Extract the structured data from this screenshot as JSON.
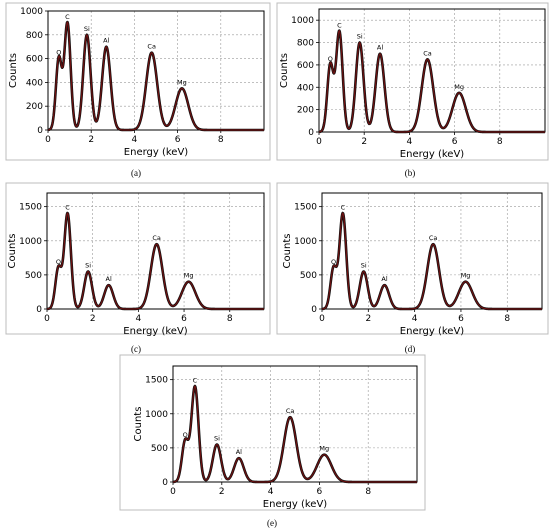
{
  "figure": {
    "panels": [
      {
        "label": "(a)"
      },
      {
        "label": "(b)"
      },
      {
        "label": "(c)"
      },
      {
        "label": "(d)"
      },
      {
        "label": "(e)"
      }
    ]
  },
  "colors": {
    "curve": "#6e1010",
    "curve_outline": "#111111",
    "grid": "#9a9a9a",
    "frame": "#bcbcbc"
  },
  "chart_data": [
    {
      "type": "line",
      "title": "",
      "xlabel": "Energy (keV)",
      "ylabel": "Counts",
      "xlim": [
        0,
        10
      ],
      "ylim": [
        0,
        1000
      ],
      "xticks": [
        0,
        2,
        4,
        6,
        8
      ],
      "yticks": [
        0,
        200,
        400,
        600,
        800,
        1000
      ],
      "grid": true,
      "peaks": [
        {
          "element": "O",
          "energy": 0.5,
          "counts": 600
        },
        {
          "element": "C",
          "energy": 0.9,
          "counts": 900
        },
        {
          "element": "Si",
          "energy": 1.8,
          "counts": 800
        },
        {
          "element": "Al",
          "energy": 2.7,
          "counts": 700
        },
        {
          "element": "Ca",
          "energy": 4.8,
          "counts": 650
        },
        {
          "element": "Mg",
          "energy": 6.2,
          "counts": 350
        }
      ]
    },
    {
      "type": "line",
      "title": "",
      "xlabel": "Energy (keV)",
      "ylabel": "Counts",
      "xlim": [
        0,
        10
      ],
      "ylim": [
        0,
        1100
      ],
      "xticks": [
        0,
        2,
        4,
        6,
        8
      ],
      "yticks": [
        0,
        200,
        400,
        600,
        800,
        1000
      ],
      "grid": true,
      "peaks": [
        {
          "element": "O",
          "energy": 0.5,
          "counts": 600
        },
        {
          "element": "C",
          "energy": 0.9,
          "counts": 900
        },
        {
          "element": "Si",
          "energy": 1.8,
          "counts": 800
        },
        {
          "element": "Al",
          "energy": 2.7,
          "counts": 700
        },
        {
          "element": "Ca",
          "energy": 4.8,
          "counts": 650
        },
        {
          "element": "Mg",
          "energy": 6.2,
          "counts": 350
        }
      ]
    },
    {
      "type": "line",
      "title": "",
      "xlabel": "Energy (keV)",
      "ylabel": "Counts",
      "xlim": [
        0,
        9.5
      ],
      "ylim": [
        0,
        1700
      ],
      "xticks": [
        0,
        2,
        4,
        6,
        8
      ],
      "yticks": [
        0,
        500,
        1000,
        1500
      ],
      "grid": true,
      "peaks": [
        {
          "element": "O",
          "energy": 0.5,
          "counts": 600
        },
        {
          "element": "C",
          "energy": 0.9,
          "counts": 1400
        },
        {
          "element": "Si",
          "energy": 1.8,
          "counts": 550
        },
        {
          "element": "Al",
          "energy": 2.7,
          "counts": 350
        },
        {
          "element": "Ca",
          "energy": 4.8,
          "counts": 950
        },
        {
          "element": "Mg",
          "energy": 6.2,
          "counts": 400
        }
      ]
    },
    {
      "type": "line",
      "title": "",
      "xlabel": "Energy (keV)",
      "ylabel": "Counts",
      "xlim": [
        0,
        9.5
      ],
      "ylim": [
        0,
        1700
      ],
      "xticks": [
        0,
        2,
        4,
        6,
        8
      ],
      "yticks": [
        0,
        500,
        1000,
        1500
      ],
      "grid": true,
      "peaks": [
        {
          "element": "O",
          "energy": 0.5,
          "counts": 600
        },
        {
          "element": "C",
          "energy": 0.9,
          "counts": 1400
        },
        {
          "element": "Si",
          "energy": 1.8,
          "counts": 550
        },
        {
          "element": "Al",
          "energy": 2.7,
          "counts": 350
        },
        {
          "element": "Ca",
          "energy": 4.8,
          "counts": 950
        },
        {
          "element": "Mg",
          "energy": 6.2,
          "counts": 400
        }
      ]
    },
    {
      "type": "line",
      "title": "",
      "xlabel": "Energy (keV)",
      "ylabel": "Counts",
      "xlim": [
        0,
        10
      ],
      "ylim": [
        0,
        1700
      ],
      "xticks": [
        0,
        2,
        4,
        6,
        8
      ],
      "yticks": [
        0,
        500,
        1000,
        1500
      ],
      "grid": true,
      "peaks": [
        {
          "element": "O",
          "energy": 0.5,
          "counts": 600
        },
        {
          "element": "C",
          "energy": 0.9,
          "counts": 1400
        },
        {
          "element": "Si",
          "energy": 1.8,
          "counts": 550
        },
        {
          "element": "Al",
          "energy": 2.7,
          "counts": 350
        },
        {
          "element": "Ca",
          "energy": 4.8,
          "counts": 950
        },
        {
          "element": "Mg",
          "energy": 6.2,
          "counts": 400
        }
      ]
    }
  ]
}
